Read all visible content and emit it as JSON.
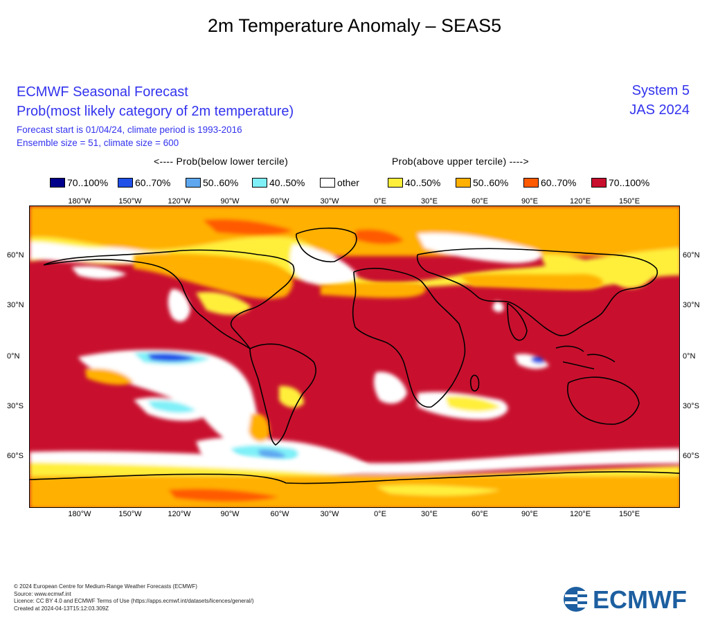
{
  "title": "2m Temperature Anomaly – SEAS5",
  "header": {
    "line1": "ECMWF Seasonal Forecast",
    "line2": "Prob(most likely category of 2m temperature)",
    "line3": "Forecast start is 01/04/24, climate period is 1993-2016",
    "line4": "Ensemble size = 51, climate size = 600",
    "system": "System 5",
    "season": "JAS 2024"
  },
  "legend": {
    "below_label": "<---- Prob(below lower tercile)",
    "above_label": "Prob(above upper tercile) ---->",
    "items": [
      {
        "label": "70..100%",
        "color": "#00008b"
      },
      {
        "label": "60..70%",
        "color": "#2050e8"
      },
      {
        "label": "50..60%",
        "color": "#5fa8f0"
      },
      {
        "label": "40..50%",
        "color": "#7ff0f8"
      },
      {
        "label": "other",
        "color": "#ffffff"
      },
      {
        "label": "40..50%",
        "color": "#ffef3a"
      },
      {
        "label": "50..60%",
        "color": "#ffb000"
      },
      {
        "label": "60..70%",
        "color": "#ff5a00"
      },
      {
        "label": "70..100%",
        "color": "#c8102e"
      }
    ]
  },
  "map": {
    "lon_labels": [
      "180°W",
      "150°W",
      "120°W",
      "90°W",
      "60°W",
      "30°W",
      "0°E",
      "30°E",
      "60°E",
      "90°E",
      "120°E",
      "150°E"
    ],
    "lat_labels": [
      "60°N",
      "30°N",
      "0°N",
      "30°S",
      "60°S"
    ],
    "colors": {
      "dominant": "#c8102e",
      "orange": "#ffb000",
      "yellow": "#ffef3a",
      "red_orange": "#ff5a00",
      "white": "#ffffff",
      "cyan": "#7ff0f8",
      "light_blue": "#5fa8f0",
      "blue": "#2050e8",
      "dark_blue": "#00008b"
    }
  },
  "footer": {
    "lines": [
      "© 2024 European Centre for Medium-Range Weather Forecasts (ECMWF)",
      "Source: www.ecmwf.int",
      "Licence: CC BY 4.0 and ECMWF Terms of Use (https://apps.ecmwf.int/datasets/licences/general/)",
      "Created at 2024-04-13T15:12:03.309Z"
    ]
  },
  "logo": {
    "text": "ECMWF",
    "color": "#1d5fa0"
  }
}
